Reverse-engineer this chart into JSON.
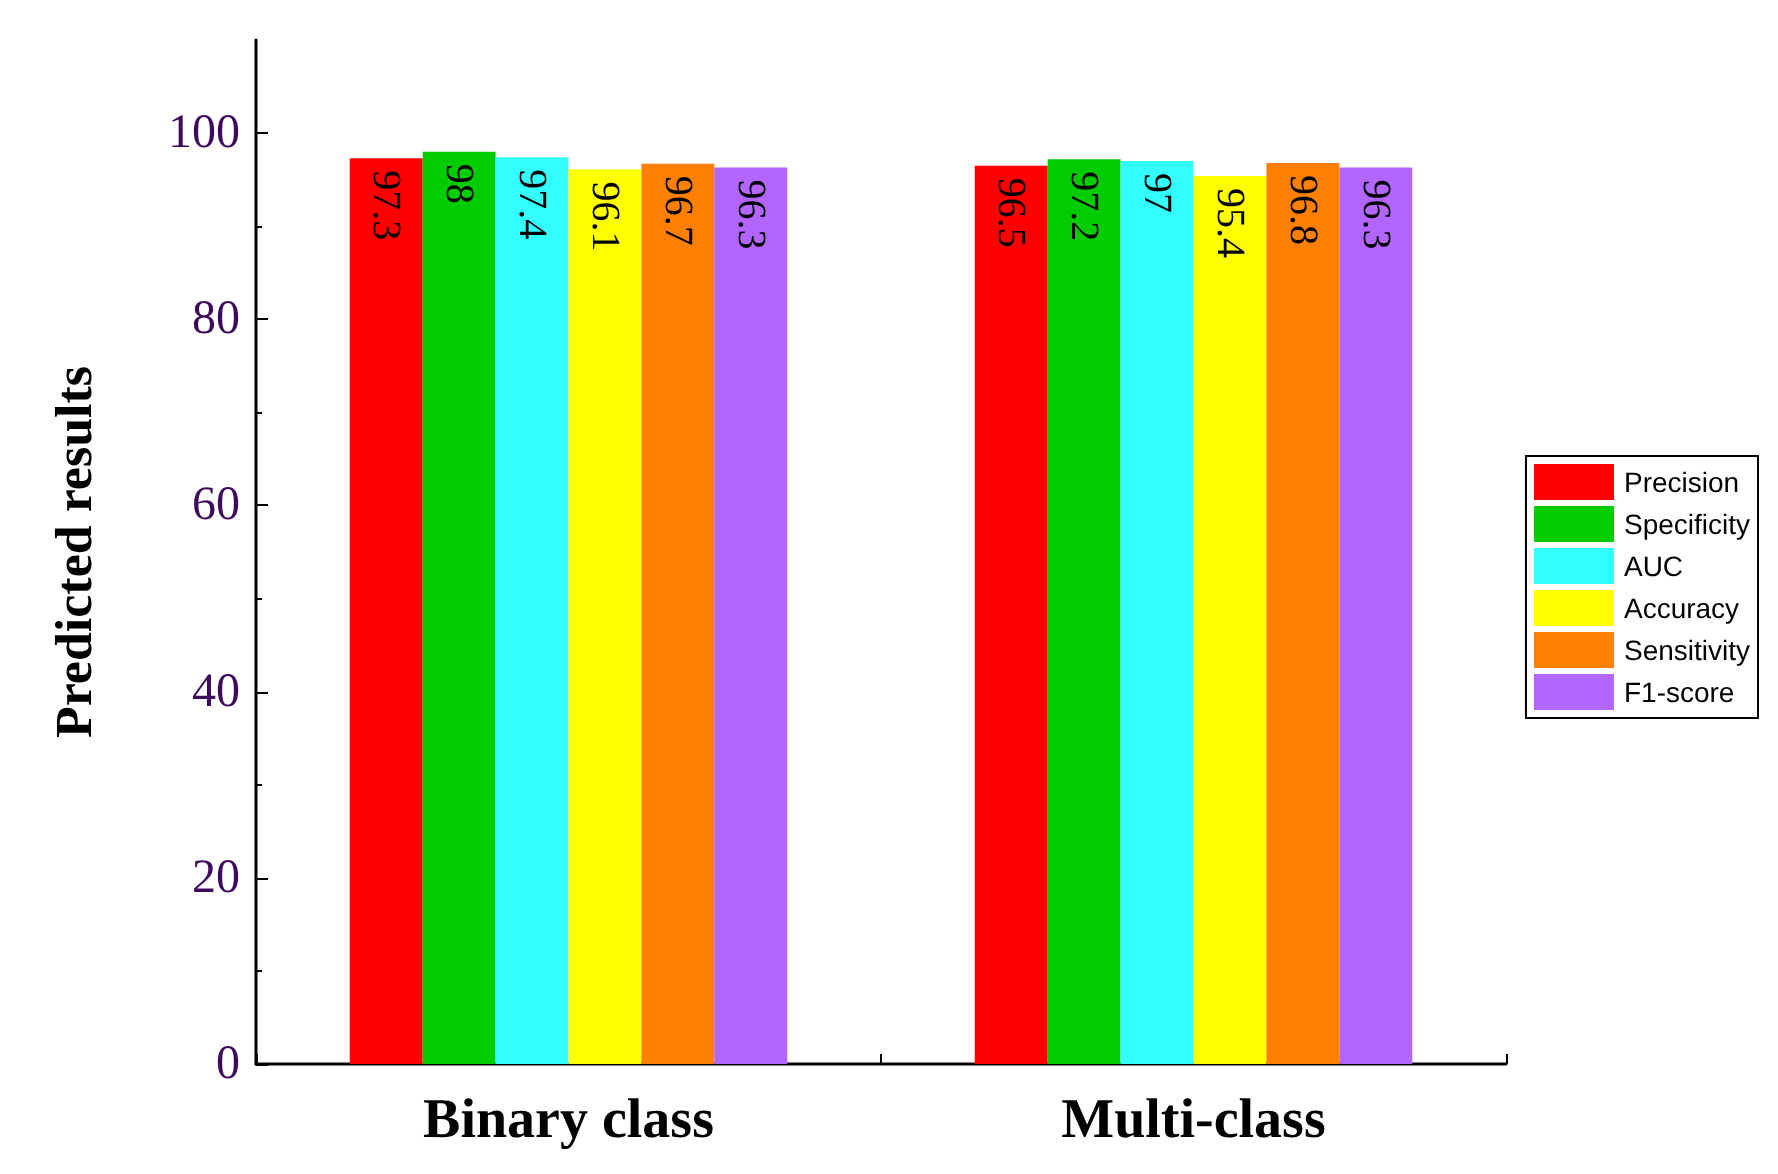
{
  "chart_data": {
    "type": "bar",
    "ylabel": "Predicted results",
    "categories": [
      "Binary class",
      "Multi-class"
    ],
    "series": [
      {
        "name": "Precision",
        "color": "#ff0000",
        "values": [
          97.3,
          96.5
        ]
      },
      {
        "name": "Specificity",
        "color": "#00cc00",
        "values": [
          98,
          97.2
        ]
      },
      {
        "name": "AUC",
        "color": "#33ffff",
        "values": [
          97.4,
          97
        ]
      },
      {
        "name": "Accuracy",
        "color": "#ffff00",
        "values": [
          96.1,
          95.4
        ]
      },
      {
        "name": "Sensitivity",
        "color": "#ff8000",
        "values": [
          96.7,
          96.8
        ]
      },
      {
        "name": "F1-score",
        "color": "#b366ff",
        "values": [
          96.3,
          96.3
        ]
      }
    ],
    "ylim": [
      0,
      110
    ],
    "yticks": [
      0,
      20,
      40,
      60,
      80,
      100
    ],
    "grid": false,
    "legend": "right",
    "data_labels": true
  }
}
